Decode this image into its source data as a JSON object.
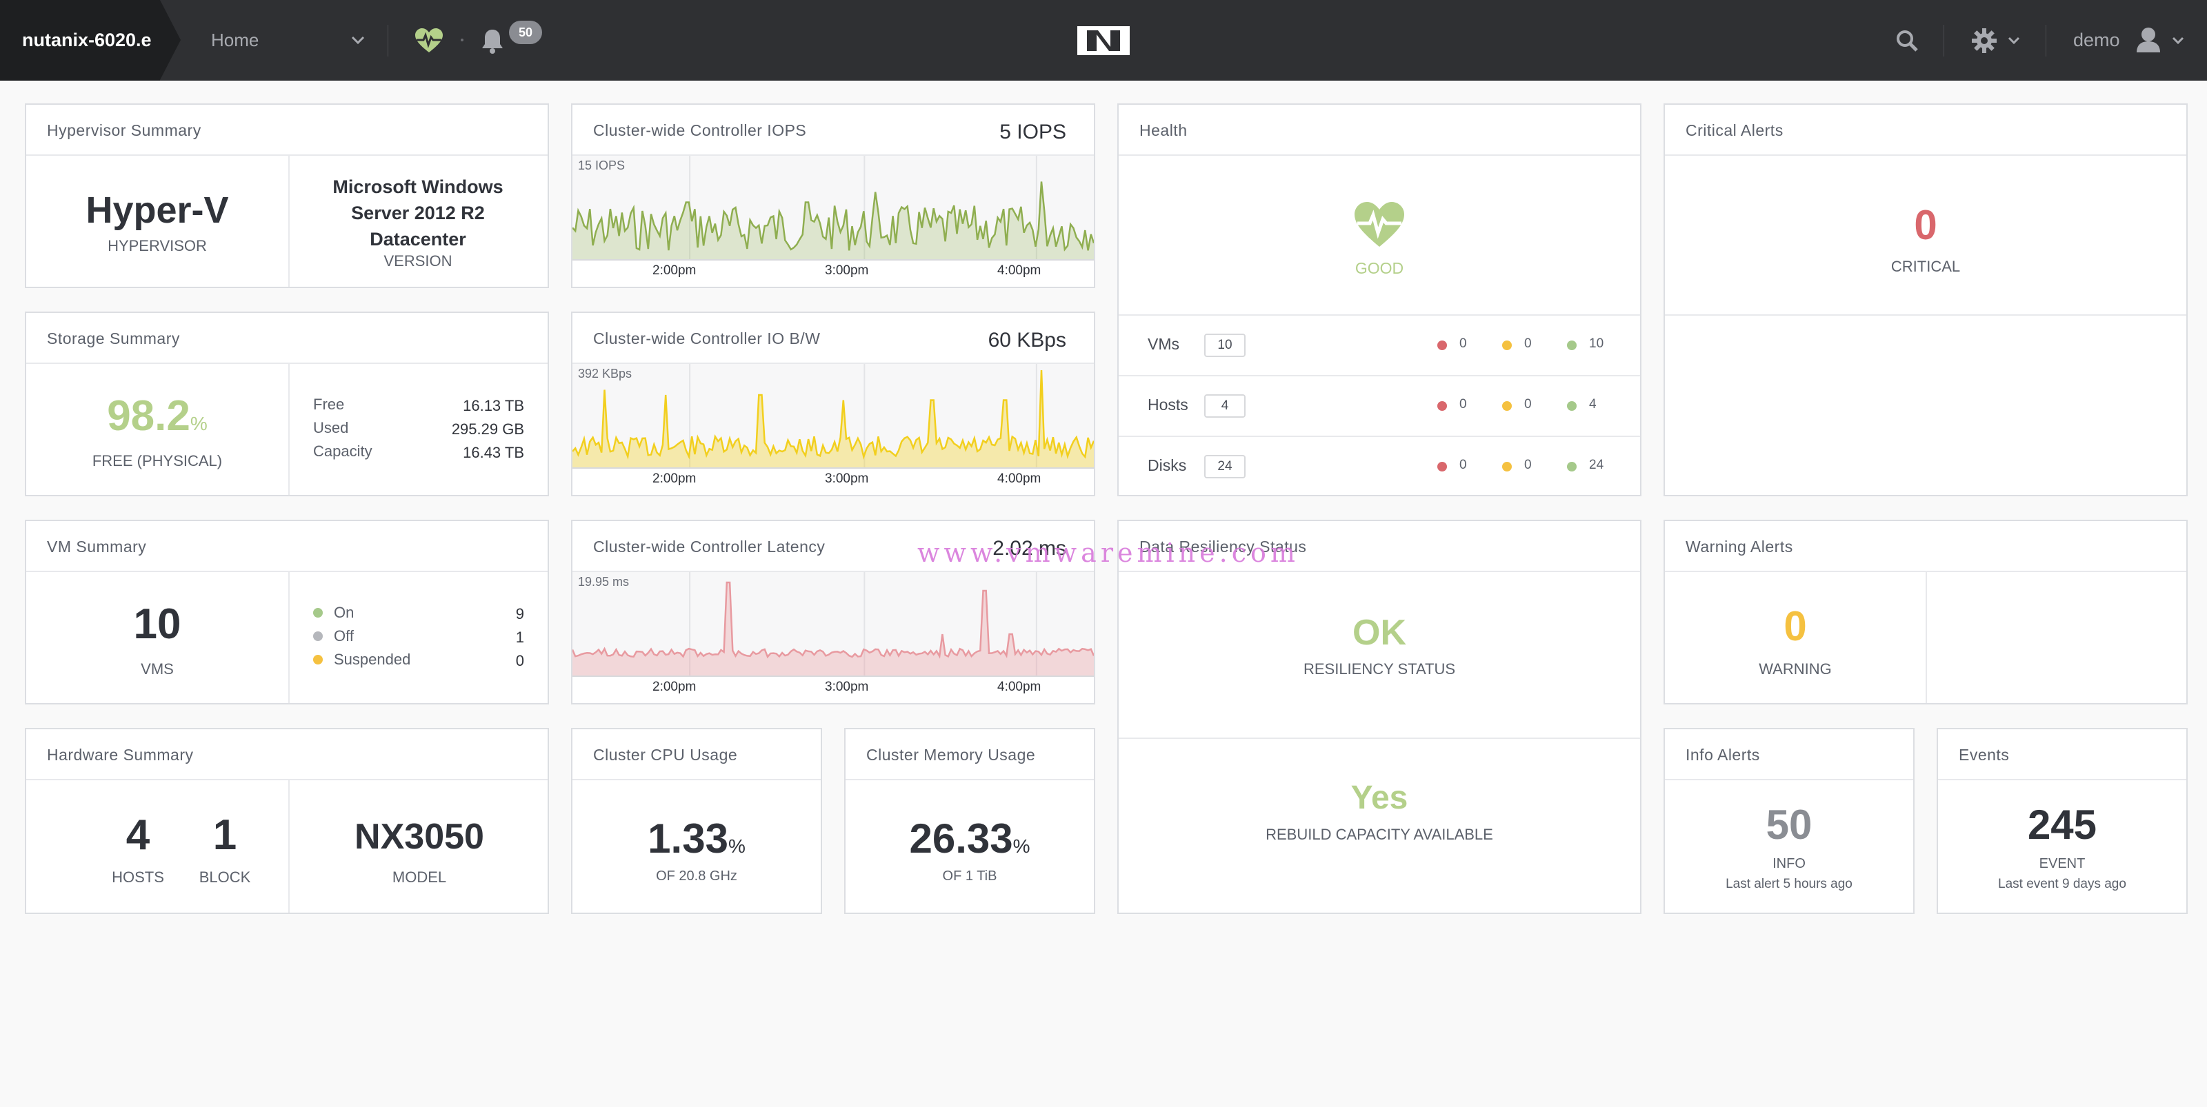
{
  "topbar": {
    "cluster_name": "nutanix-6020.e",
    "nav_home": "Home",
    "alerts_count": "50",
    "user": "demo"
  },
  "hypervisor": {
    "title": "Hypervisor Summary",
    "name": "Hyper-V",
    "name_label": "HYPERVISOR",
    "version": "Microsoft Windows Server 2012 R2 Datacenter",
    "version_label": "VERSION"
  },
  "storage": {
    "title": "Storage Summary",
    "free_pct": "98.2",
    "pct_sign": "%",
    "free_label": "FREE (PHYSICAL)",
    "rows": [
      {
        "label": "Free",
        "value": "16.13 TB"
      },
      {
        "label": "Used",
        "value": "295.29 GB"
      },
      {
        "label": "Capacity",
        "value": "16.43 TB"
      }
    ]
  },
  "vm_summary": {
    "title": "VM Summary",
    "count": "10",
    "count_label": "VMS",
    "rows": [
      {
        "label": "On",
        "value": "9",
        "color": "#a5c98a"
      },
      {
        "label": "Off",
        "value": "1",
        "color": "#b5b7bc"
      },
      {
        "label": "Suspended",
        "value": "0",
        "color": "#f5c140"
      }
    ]
  },
  "hardware": {
    "title": "Hardware Summary",
    "hosts": "4",
    "hosts_label": "HOSTS",
    "blocks": "1",
    "blocks_label": "BLOCK",
    "model": "NX3050",
    "model_label": "MODEL"
  },
  "iops": {
    "title": "Cluster-wide Controller IOPS",
    "metric": "5 IOPS",
    "max": "15 IOPS",
    "color": "#8fae50",
    "ticks": [
      "2:00pm",
      "3:00pm",
      "4:00pm"
    ]
  },
  "bw": {
    "title": "Cluster-wide Controller IO B/W",
    "metric": "60 KBps",
    "max": "392 KBps",
    "color": "#f2cf1e",
    "ticks": [
      "2:00pm",
      "3:00pm",
      "4:00pm"
    ]
  },
  "latency": {
    "title": "Cluster-wide Controller Latency",
    "metric": "2.02 ms",
    "max": "19.95 ms",
    "color": "#e89aa0",
    "ticks": [
      "2:00pm",
      "3:00pm",
      "4:00pm"
    ]
  },
  "cpu": {
    "title": "Cluster CPU Usage",
    "value": "1.33",
    "pct_sign": "%",
    "sub": "OF 20.8 GHz"
  },
  "memory": {
    "title": "Cluster Memory Usage",
    "value": "26.33",
    "pct_sign": "%",
    "sub": "OF 1 TiB"
  },
  "health": {
    "title": "Health",
    "status": "GOOD",
    "rows": [
      {
        "label": "VMs",
        "count": "10",
        "red": "0",
        "yellow": "0",
        "green": "10"
      },
      {
        "label": "Hosts",
        "count": "4",
        "red": "0",
        "yellow": "0",
        "green": "4"
      },
      {
        "label": "Disks",
        "count": "24",
        "red": "0",
        "yellow": "0",
        "green": "24"
      }
    ],
    "colors": {
      "red": "#d9676c",
      "yellow": "#f5c140",
      "green": "#a5c98a"
    }
  },
  "resiliency": {
    "title": "Data Resiliency Status",
    "status": "OK",
    "status_label": "RESILIENCY STATUS",
    "rebuild": "Yes",
    "rebuild_label": "REBUILD CAPACITY AVAILABLE"
  },
  "critical": {
    "title": "Critical Alerts",
    "value": "0",
    "label": "CRITICAL",
    "color": "#d9676c"
  },
  "warning": {
    "title": "Warning Alerts",
    "value": "0",
    "label": "WARNING",
    "color": "#f5c140"
  },
  "info": {
    "title": "Info Alerts",
    "value": "50",
    "label": "INFO",
    "sub": "Last alert 5 hours ago"
  },
  "events": {
    "title": "Events",
    "value": "245",
    "label": "EVENT",
    "sub": "Last event 9 days ago"
  },
  "watermark": "www.vmwaremine.com"
}
